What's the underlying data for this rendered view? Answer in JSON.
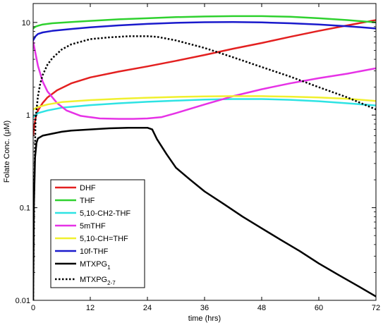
{
  "chart_data": {
    "type": "line",
    "title": "",
    "xlabel": "time (hrs)",
    "ylabel_prefix": "Folate Conc. (",
    "ylabel_unit": "μM",
    "ylabel_suffix": ")",
    "xlim": [
      0,
      72
    ],
    "ylim": [
      0.01,
      16
    ],
    "yscale": "log",
    "xticks": [
      0,
      12,
      24,
      36,
      48,
      60,
      72
    ],
    "yticks": [
      {
        "value": 0.01,
        "label": "0.01"
      },
      {
        "value": 0.1,
        "label": "0.1"
      },
      {
        "value": 1,
        "label": "1"
      },
      {
        "value": 10,
        "label": "10"
      }
    ],
    "legend_position": "lower-left",
    "series": [
      {
        "name": "DHF",
        "color": "#e32020",
        "dash": "solid",
        "points": [
          [
            0,
            0.6
          ],
          [
            0.3,
            0.8
          ],
          [
            0.6,
            0.98
          ],
          [
            1,
            1.12
          ],
          [
            2,
            1.35
          ],
          [
            3,
            1.55
          ],
          [
            5,
            1.85
          ],
          [
            8,
            2.2
          ],
          [
            12,
            2.55
          ],
          [
            18,
            2.95
          ],
          [
            24,
            3.35
          ],
          [
            30,
            3.85
          ],
          [
            36,
            4.45
          ],
          [
            42,
            5.2
          ],
          [
            48,
            6.0
          ],
          [
            54,
            7.0
          ],
          [
            60,
            8.1
          ],
          [
            66,
            9.3
          ],
          [
            72,
            10.6
          ]
        ]
      },
      {
        "name": "THF",
        "color": "#2fd12f",
        "dash": "solid",
        "points": [
          [
            0,
            8.6
          ],
          [
            0.5,
            9.0
          ],
          [
            1,
            9.2
          ],
          [
            2,
            9.5
          ],
          [
            4,
            9.8
          ],
          [
            8,
            10.1
          ],
          [
            12,
            10.4
          ],
          [
            18,
            10.8
          ],
          [
            24,
            11.1
          ],
          [
            30,
            11.4
          ],
          [
            36,
            11.6
          ],
          [
            42,
            11.7
          ],
          [
            48,
            11.7
          ],
          [
            54,
            11.5
          ],
          [
            60,
            11.1
          ],
          [
            66,
            10.6
          ],
          [
            72,
            10.0
          ]
        ]
      },
      {
        "name": "5,10-CH2-THF",
        "color": "#2ee3e3",
        "dash": "solid",
        "points": [
          [
            0,
            0.95
          ],
          [
            1,
            1.05
          ],
          [
            3,
            1.12
          ],
          [
            6,
            1.2
          ],
          [
            12,
            1.28
          ],
          [
            18,
            1.34
          ],
          [
            24,
            1.39
          ],
          [
            30,
            1.43
          ],
          [
            36,
            1.47
          ],
          [
            42,
            1.49
          ],
          [
            48,
            1.49
          ],
          [
            54,
            1.46
          ],
          [
            60,
            1.41
          ],
          [
            66,
            1.34
          ],
          [
            72,
            1.27
          ]
        ]
      },
      {
        "name": "5mTHF",
        "color": "#e632e6",
        "dash": "solid",
        "points": [
          [
            0,
            6.2
          ],
          [
            0.5,
            4.6
          ],
          [
            1,
            3.4
          ],
          [
            2,
            2.3
          ],
          [
            3,
            1.8
          ],
          [
            5,
            1.35
          ],
          [
            7,
            1.12
          ],
          [
            10,
            0.98
          ],
          [
            14,
            0.92
          ],
          [
            18,
            0.91
          ],
          [
            21,
            0.91
          ],
          [
            24,
            0.92
          ],
          [
            27,
            0.95
          ],
          [
            30,
            1.05
          ],
          [
            36,
            1.3
          ],
          [
            42,
            1.6
          ],
          [
            48,
            1.9
          ],
          [
            54,
            2.2
          ],
          [
            60,
            2.5
          ],
          [
            66,
            2.8
          ],
          [
            72,
            3.2
          ]
        ]
      },
      {
        "name": "5,10-CH=THF",
        "color": "#f0f02e",
        "dash": "solid",
        "points": [
          [
            0,
            1.15
          ],
          [
            1,
            1.22
          ],
          [
            3,
            1.3
          ],
          [
            6,
            1.38
          ],
          [
            12,
            1.45
          ],
          [
            18,
            1.5
          ],
          [
            24,
            1.54
          ],
          [
            30,
            1.57
          ],
          [
            36,
            1.59
          ],
          [
            42,
            1.6
          ],
          [
            48,
            1.6
          ],
          [
            54,
            1.58
          ],
          [
            60,
            1.55
          ],
          [
            66,
            1.5
          ],
          [
            72,
            1.42
          ]
        ]
      },
      {
        "name": "10f-THF",
        "color": "#1a1acc",
        "dash": "solid",
        "points": [
          [
            0,
            6.4
          ],
          [
            0.5,
            7.1
          ],
          [
            1,
            7.5
          ],
          [
            2,
            7.8
          ],
          [
            4,
            8.1
          ],
          [
            8,
            8.5
          ],
          [
            12,
            8.85
          ],
          [
            18,
            9.3
          ],
          [
            24,
            9.65
          ],
          [
            30,
            9.9
          ],
          [
            36,
            10.05
          ],
          [
            42,
            10.1
          ],
          [
            48,
            10.0
          ],
          [
            54,
            9.8
          ],
          [
            60,
            9.5
          ],
          [
            66,
            9.1
          ],
          [
            72,
            8.6
          ]
        ]
      },
      {
        "name": "MTXPG",
        "sub": "1",
        "color": "#000000",
        "dash": "solid",
        "points": [
          [
            0,
            0.01
          ],
          [
            0.15,
            0.1
          ],
          [
            0.4,
            0.35
          ],
          [
            0.7,
            0.5
          ],
          [
            1,
            0.56
          ],
          [
            2,
            0.6
          ],
          [
            4,
            0.63
          ],
          [
            6,
            0.66
          ],
          [
            8,
            0.68
          ],
          [
            12,
            0.7
          ],
          [
            16,
            0.72
          ],
          [
            20,
            0.73
          ],
          [
            24,
            0.73
          ],
          [
            25,
            0.7
          ],
          [
            26,
            0.55
          ],
          [
            28,
            0.38
          ],
          [
            30,
            0.27
          ],
          [
            33,
            0.2
          ],
          [
            36,
            0.15
          ],
          [
            40,
            0.11
          ],
          [
            44,
            0.08
          ],
          [
            48,
            0.06
          ],
          [
            52,
            0.045
          ],
          [
            56,
            0.034
          ],
          [
            60,
            0.025
          ],
          [
            64,
            0.019
          ],
          [
            68,
            0.0145
          ],
          [
            72,
            0.011
          ]
        ]
      },
      {
        "name": "MTXPG",
        "sub": "2-7",
        "color": "#000000",
        "dash": "dotted",
        "points": [
          [
            0,
            0.01
          ],
          [
            0.2,
            0.15
          ],
          [
            0.5,
            0.9
          ],
          [
            1,
            1.6
          ],
          [
            1.5,
            2.2
          ],
          [
            2,
            2.7
          ],
          [
            3,
            3.5
          ],
          [
            4,
            4.1
          ],
          [
            6,
            5.1
          ],
          [
            8,
            5.8
          ],
          [
            12,
            6.6
          ],
          [
            16,
            6.9
          ],
          [
            20,
            7.1
          ],
          [
            24,
            7.1
          ],
          [
            26,
            7.0
          ],
          [
            30,
            6.4
          ],
          [
            36,
            5.3
          ],
          [
            42,
            4.2
          ],
          [
            48,
            3.3
          ],
          [
            54,
            2.6
          ],
          [
            60,
            2.0
          ],
          [
            66,
            1.55
          ],
          [
            72,
            1.15
          ]
        ]
      }
    ]
  }
}
